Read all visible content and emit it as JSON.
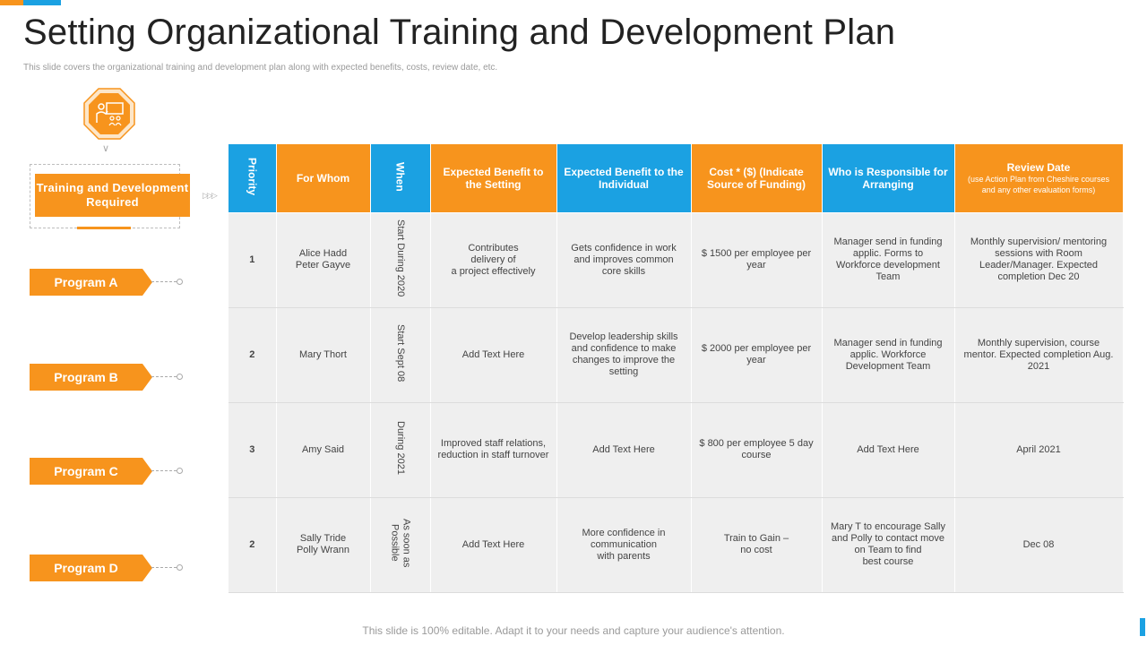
{
  "page": {
    "title": "Setting Organizational Training and Development Plan",
    "subtitle": "This slide covers the organizational training  and development plan along  with expected benefits, costs, review date, etc.",
    "footer": "This slide is 100% editable. Adapt it to your needs and capture your audience's attention."
  },
  "left_panel": {
    "icon": "training-presentation-icon",
    "required_label": "Training and Development Required",
    "programs": [
      "Program A",
      "Program B",
      "Program C",
      "Program D"
    ]
  },
  "colors": {
    "orange": "#f7941d",
    "blue": "#1ba1e2",
    "cell_bg": "#efefef"
  },
  "table": {
    "headers": {
      "priority": "Priority",
      "for_whom": "For Whom",
      "when": "When",
      "benefit_setting": "Expected Benefit to the Setting",
      "benefit_individual": "Expected Benefit to the Individual",
      "cost": "Cost * ($) (Indicate Source of Funding)",
      "responsible": "Who is Responsible for Arranging",
      "review": "Review Date",
      "review_note": "(use Action Plan from Cheshire courses and any other evaluation forms)"
    },
    "rows": [
      {
        "priority": "1",
        "for_whom": "Alice Hadd\nPeter Gayve",
        "when": "Start During 2020",
        "benefit_setting": "Contributes\ndelivery of\na project effectively",
        "benefit_individual": "Gets confidence in work and improves common core skills",
        "cost": "$ 1500 per employee per year",
        "responsible": "Manager send in funding applic. Forms to Workforce development Team",
        "review": "Monthly supervision/ mentoring sessions with Room Leader/Manager. Expected completion Dec 20"
      },
      {
        "priority": "2",
        "for_whom": "Mary Thort",
        "when": "Start Sept 08",
        "benefit_setting": "Add Text Here",
        "benefit_individual": "Develop leadership skills and confidence to make changes to improve the setting",
        "cost": "$ 2000 per employee per year",
        "responsible": "Manager send in funding applic. Workforce Development Team",
        "review": "Monthly supervision, course mentor. Expected completion Aug. 2021"
      },
      {
        "priority": "3",
        "for_whom": "Amy Said",
        "when": "During 2021",
        "benefit_setting": "Improved staff relations, reduction in staff turnover",
        "benefit_individual": "Add Text Here",
        "cost": "$ 800 per employee 5 day course",
        "responsible": "Add Text Here",
        "review": "April 2021"
      },
      {
        "priority": "2",
        "for_whom": "Sally Tride\nPolly Wrann",
        "when": "As soon as\nPossible",
        "benefit_setting": "Add Text Here",
        "benefit_individual": "More confidence in\ncommunication\nwith parents",
        "cost": "Train to Gain –\nno cost",
        "responsible": "Mary T to encourage Sally and Polly to contact move on Team to find\nbest course",
        "review": "Dec 08"
      }
    ]
  }
}
